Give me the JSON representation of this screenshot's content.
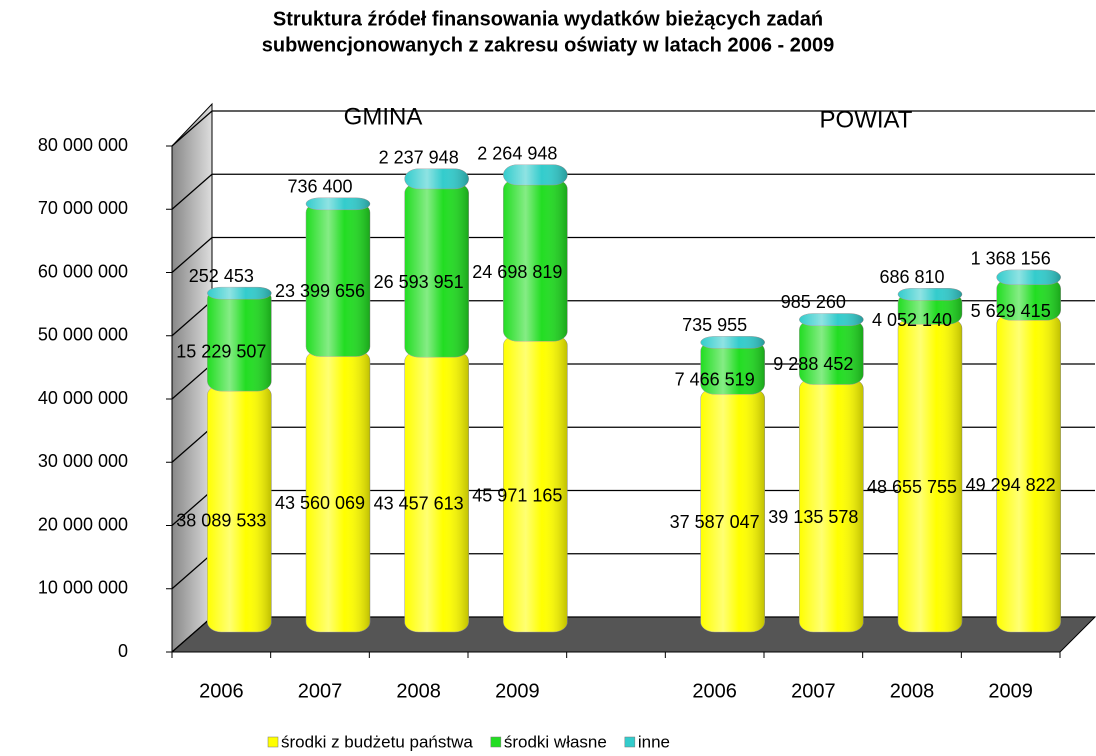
{
  "chart_data": {
    "type": "bar3d_stacked",
    "title": [
      "Struktura źródeł finansowania wydatków bieżących zadań",
      "subwencjonowanych z zakresu oświaty w latach 2006 - 2009"
    ],
    "annotations": [
      "GMINA",
      "POWIAT"
    ],
    "categories": [
      "2006",
      "2007",
      "2008",
      "2009",
      null,
      "2006",
      "2007",
      "2008",
      "2009"
    ],
    "series": [
      {
        "name": "środki z budżetu państwa",
        "color": "#ffff00",
        "values": [
          38089533,
          43560069,
          43457613,
          45971165,
          null,
          37587047,
          39135578,
          48655755,
          49294822
        ],
        "value_labels": [
          "38 089 533",
          "43 560 069",
          "43 457 613",
          "45 971 165",
          null,
          "37 587 047",
          "39 135 578",
          "48 655 755",
          "49 294 822"
        ]
      },
      {
        "name": "środki własne",
        "color": "#22dd22",
        "values": [
          15229507,
          23399656,
          26593951,
          24698819,
          null,
          7466519,
          9288452,
          4052140,
          5629415
        ],
        "value_labels": [
          "15 229 507",
          "23 399 656",
          "26 593 951",
          "24 698 819",
          null,
          "7 466 519",
          "9 288 452",
          "4 052 140",
          "5 629 415"
        ]
      },
      {
        "name": "inne",
        "color": "#33cccc",
        "values": [
          252453,
          736400,
          2237948,
          2264948,
          null,
          735955,
          985260,
          686810,
          1368156
        ],
        "value_labels": [
          "252 453",
          "736 400",
          "2 237 948",
          "2 264 948",
          null,
          "735 955",
          "985 260",
          "686 810",
          "1 368 156"
        ]
      }
    ],
    "ylim": [
      0,
      80000000
    ],
    "yticks": [
      {
        "value": 0,
        "label": "0"
      },
      {
        "value": 10000000,
        "label": "10 000 000"
      },
      {
        "value": 20000000,
        "label": "20 000 000"
      },
      {
        "value": 30000000,
        "label": "30 000 000"
      },
      {
        "value": 40000000,
        "label": "40 000 000"
      },
      {
        "value": 50000000,
        "label": "50 000 000"
      },
      {
        "value": 60000000,
        "label": "60 000 000"
      },
      {
        "value": 70000000,
        "label": "70 000 000"
      },
      {
        "value": 80000000,
        "label": "80 000 000"
      }
    ],
    "grid": true,
    "legend": "bottom"
  }
}
